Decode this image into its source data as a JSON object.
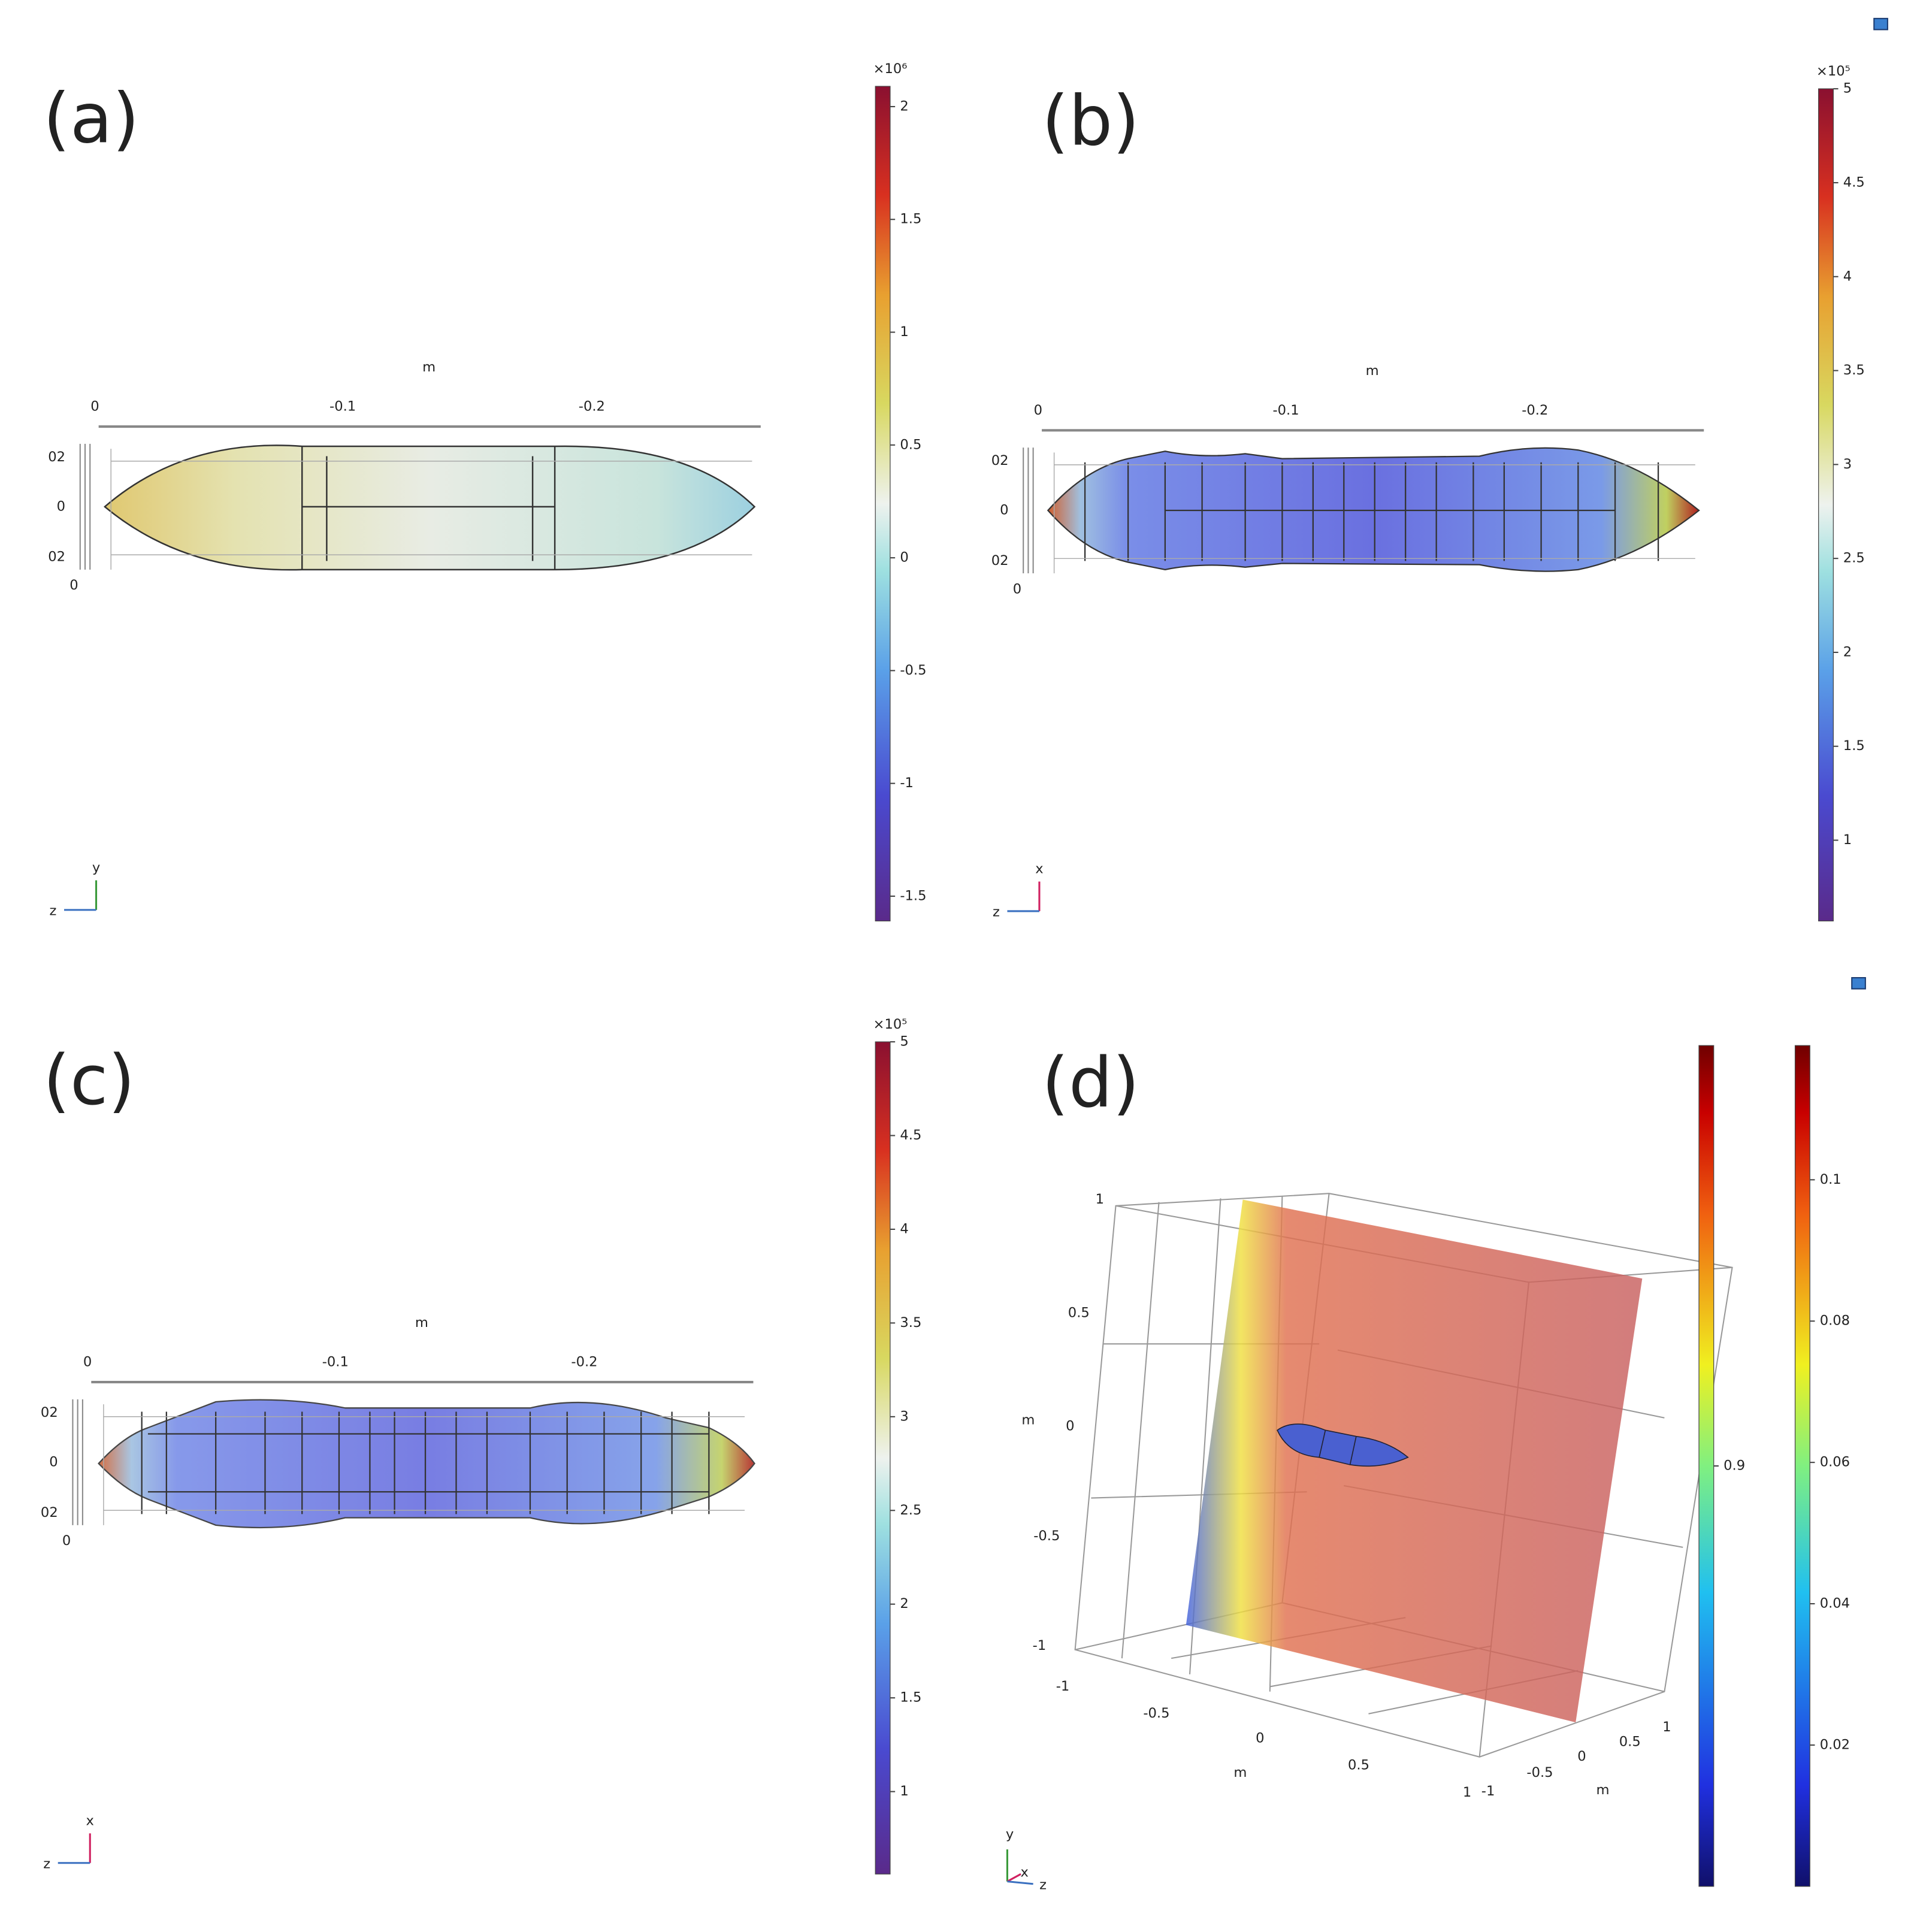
{
  "panels": [
    {
      "label": "(a)",
      "axis_unit": "m",
      "x_ticks": [
        "0",
        "-0.1",
        "-0.2"
      ],
      "y_ticks": [
        "02",
        "0",
        "02"
      ],
      "corner_tick": "0",
      "triad": [
        "y",
        "z"
      ],
      "colorbar": {
        "exponent": "×10⁶",
        "range": [
          -1.61,
          2.09
        ],
        "ticks": [
          2,
          1.5,
          1,
          0.5,
          0,
          -0.5,
          -1,
          -1.5
        ]
      }
    },
    {
      "label": "(b)",
      "axis_unit": "m",
      "x_ticks": [
        "0",
        "-0.1",
        "-0.2"
      ],
      "y_ticks": [
        "02",
        "0",
        "02"
      ],
      "corner_tick": "0",
      "triad": [
        "x",
        "z"
      ],
      "colorbar": {
        "exponent": "×10⁵",
        "range": [
          0.57,
          5
        ],
        "ticks": [
          5,
          4.5,
          4,
          3.5,
          3,
          2.5,
          2,
          1.5,
          1
        ]
      }
    },
    {
      "label": "(c)",
      "axis_unit": "m",
      "x_ticks": [
        "0",
        "-0.1",
        "-0.2"
      ],
      "y_ticks": [
        "02",
        "0",
        "02"
      ],
      "corner_tick": "0",
      "triad": [
        "x",
        "z"
      ],
      "colorbar": {
        "exponent": "×10⁵",
        "range": [
          0.56,
          5
        ],
        "ticks": [
          5,
          4.5,
          4,
          3.5,
          3,
          2.5,
          2,
          1.5,
          1
        ]
      }
    },
    {
      "label": "(d)",
      "axis_unit": "m",
      "y_ticks": [
        "1",
        "0.5",
        "0",
        "-0.5",
        "-1"
      ],
      "x_ticks": [
        "-1",
        "-0.5",
        "0",
        "0.5",
        "1"
      ],
      "z_ticks": [
        "-1",
        "-0.5",
        "0",
        "0.5",
        "1"
      ],
      "triad": [
        "y",
        "x",
        "z"
      ],
      "colorbars": [
        {
          "range": [
            0.8,
            1.0
          ],
          "ticks": [
            0.9
          ]
        },
        {
          "range": [
            0,
            0.119
          ],
          "ticks": [
            0.1,
            0.08,
            0.06,
            0.04,
            0.02
          ]
        }
      ]
    }
  ]
}
